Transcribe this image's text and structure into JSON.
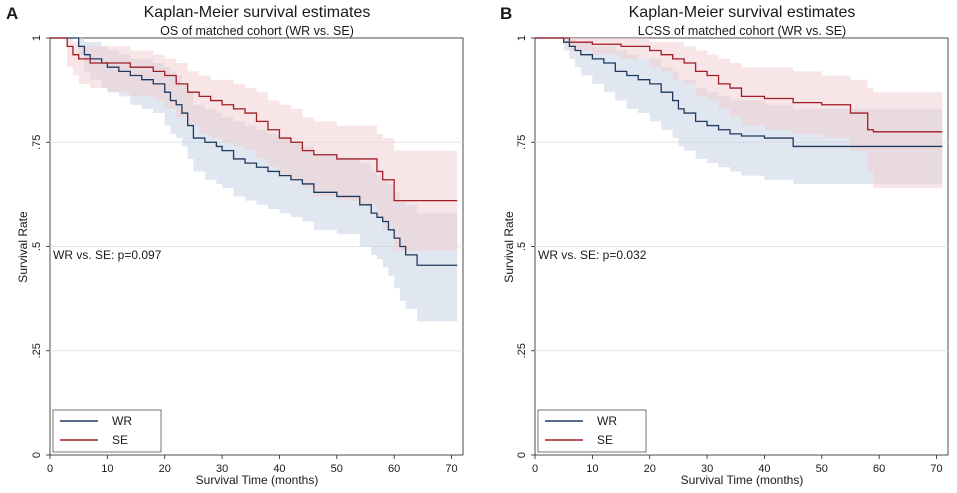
{
  "colors": {
    "wr": "#1f3a60",
    "se": "#a01e24",
    "wr_band": "#c9d3e3",
    "se_band": "#f1cfd3",
    "grid": "#e3e3e3",
    "axis": "#222222"
  },
  "chart_data": [
    {
      "type": "line",
      "panel_label": "A",
      "title": "Kaplan-Meier survival estimates",
      "subtitle": "OS of matched cohort (WR vs. SE)",
      "xlabel": "Survival Time (months)",
      "ylabel": "Survival Rate",
      "xlim": [
        0,
        72
      ],
      "ylim": [
        0,
        1
      ],
      "xticks": [
        0,
        10,
        20,
        30,
        40,
        50,
        60,
        70
      ],
      "yticks": [
        0,
        0.25,
        0.5,
        0.75,
        1
      ],
      "ytick_labels": [
        "0",
        ".25",
        ".5",
        ".75",
        "1"
      ],
      "grid": true,
      "annotation": "WR vs. SE: p=0.097",
      "legend": {
        "position": "bottom-left",
        "entries": [
          "WR",
          "SE"
        ]
      },
      "series": [
        {
          "name": "WR",
          "x": [
            0,
            3,
            5,
            6,
            7,
            9,
            10,
            12,
            14,
            16,
            18,
            20,
            21,
            22,
            23,
            24,
            25,
            27,
            29,
            30,
            32,
            34,
            36,
            38,
            40,
            42,
            44,
            46,
            50,
            54,
            56,
            57,
            58,
            59,
            60,
            61,
            62,
            64,
            71
          ],
          "y": [
            1,
            1,
            0.98,
            0.96,
            0.95,
            0.94,
            0.93,
            0.92,
            0.91,
            0.9,
            0.89,
            0.87,
            0.85,
            0.84,
            0.82,
            0.79,
            0.76,
            0.75,
            0.74,
            0.73,
            0.71,
            0.7,
            0.69,
            0.68,
            0.67,
            0.66,
            0.65,
            0.63,
            0.62,
            0.6,
            0.58,
            0.57,
            0.56,
            0.54,
            0.52,
            0.5,
            0.48,
            0.455,
            0.455
          ],
          "ci_lower": [
            1,
            1,
            0.96,
            0.92,
            0.9,
            0.88,
            0.87,
            0.86,
            0.84,
            0.83,
            0.82,
            0.79,
            0.77,
            0.76,
            0.74,
            0.71,
            0.68,
            0.66,
            0.65,
            0.64,
            0.62,
            0.61,
            0.6,
            0.59,
            0.58,
            0.57,
            0.56,
            0.54,
            0.53,
            0.5,
            0.48,
            0.47,
            0.45,
            0.43,
            0.4,
            0.37,
            0.35,
            0.32,
            0.32
          ],
          "ci_upper": [
            1,
            1,
            1,
            0.99,
            0.99,
            0.98,
            0.97,
            0.96,
            0.95,
            0.95,
            0.94,
            0.93,
            0.92,
            0.91,
            0.89,
            0.87,
            0.84,
            0.83,
            0.82,
            0.81,
            0.8,
            0.79,
            0.78,
            0.77,
            0.76,
            0.75,
            0.74,
            0.72,
            0.71,
            0.7,
            0.68,
            0.67,
            0.66,
            0.65,
            0.63,
            0.61,
            0.6,
            0.58,
            0.58
          ]
        },
        {
          "name": "SE",
          "x": [
            0,
            3,
            4,
            5,
            7,
            10,
            14,
            18,
            20,
            22,
            24,
            26,
            28,
            30,
            32,
            34,
            36,
            38,
            40,
            42,
            44,
            46,
            50,
            54,
            57,
            58,
            60,
            71
          ],
          "y": [
            1,
            0.98,
            0.96,
            0.95,
            0.94,
            0.94,
            0.93,
            0.92,
            0.91,
            0.89,
            0.87,
            0.86,
            0.85,
            0.84,
            0.83,
            0.82,
            0.8,
            0.78,
            0.76,
            0.75,
            0.73,
            0.72,
            0.71,
            0.71,
            0.68,
            0.66,
            0.61,
            0.61
          ],
          "ci_lower": [
            1,
            0.93,
            0.91,
            0.89,
            0.88,
            0.87,
            0.86,
            0.85,
            0.83,
            0.81,
            0.79,
            0.77,
            0.76,
            0.75,
            0.74,
            0.73,
            0.71,
            0.69,
            0.67,
            0.66,
            0.64,
            0.62,
            0.61,
            0.6,
            0.57,
            0.54,
            0.49,
            0.49
          ],
          "ci_upper": [
            1,
            1,
            0.99,
            0.98,
            0.98,
            0.98,
            0.97,
            0.96,
            0.95,
            0.94,
            0.92,
            0.91,
            0.9,
            0.9,
            0.89,
            0.88,
            0.87,
            0.85,
            0.84,
            0.83,
            0.81,
            0.8,
            0.79,
            0.79,
            0.77,
            0.76,
            0.73,
            0.73
          ]
        }
      ]
    },
    {
      "type": "line",
      "panel_label": "B",
      "title": "Kaplan-Meier survival estimates",
      "subtitle": "LCSS of matched cohort (WR vs. SE)",
      "xlabel": "Survival Time (months)",
      "ylabel": "Survival Rate",
      "xlim": [
        0,
        72
      ],
      "ylim": [
        0,
        1
      ],
      "xticks": [
        0,
        10,
        20,
        30,
        40,
        50,
        60,
        70
      ],
      "yticks": [
        0,
        0.25,
        0.5,
        0.75,
        1
      ],
      "ytick_labels": [
        "0",
        ".25",
        ".5",
        ".75",
        "1"
      ],
      "grid": true,
      "annotation": "WR vs. SE: p=0.032",
      "legend": {
        "position": "bottom-left",
        "entries": [
          "WR",
          "SE"
        ]
      },
      "series": [
        {
          "name": "WR",
          "x": [
            0,
            5,
            6,
            7,
            8,
            10,
            12,
            14,
            16,
            18,
            20,
            22,
            24,
            25,
            26,
            28,
            30,
            32,
            34,
            36,
            40,
            45,
            71
          ],
          "y": [
            1,
            0.99,
            0.98,
            0.97,
            0.96,
            0.95,
            0.94,
            0.92,
            0.91,
            0.9,
            0.89,
            0.87,
            0.85,
            0.83,
            0.82,
            0.8,
            0.79,
            0.78,
            0.77,
            0.765,
            0.76,
            0.74,
            0.74
          ],
          "ci_lower": [
            1,
            0.97,
            0.95,
            0.93,
            0.91,
            0.89,
            0.87,
            0.85,
            0.83,
            0.82,
            0.8,
            0.78,
            0.76,
            0.74,
            0.73,
            0.71,
            0.7,
            0.69,
            0.68,
            0.67,
            0.66,
            0.65,
            0.65
          ],
          "ci_upper": [
            1,
            1,
            1,
            0.99,
            0.99,
            0.98,
            0.98,
            0.97,
            0.96,
            0.95,
            0.95,
            0.93,
            0.92,
            0.9,
            0.9,
            0.88,
            0.87,
            0.86,
            0.85,
            0.85,
            0.84,
            0.83,
            0.83
          ]
        },
        {
          "name": "SE",
          "x": [
            0,
            6,
            10,
            15,
            20,
            22,
            24,
            26,
            28,
            30,
            32,
            34,
            36,
            40,
            45,
            50,
            55,
            58,
            59,
            71
          ],
          "y": [
            1,
            0.99,
            0.985,
            0.98,
            0.97,
            0.96,
            0.95,
            0.94,
            0.92,
            0.91,
            0.89,
            0.88,
            0.86,
            0.855,
            0.845,
            0.84,
            0.82,
            0.78,
            0.775,
            0.775
          ],
          "ci_lower": [
            1,
            0.97,
            0.96,
            0.95,
            0.93,
            0.92,
            0.9,
            0.89,
            0.86,
            0.85,
            0.83,
            0.81,
            0.79,
            0.78,
            0.77,
            0.76,
            0.73,
            0.68,
            0.64,
            0.64
          ],
          "ci_upper": [
            1,
            1,
            1,
            1,
            0.99,
            0.99,
            0.99,
            0.98,
            0.97,
            0.96,
            0.95,
            0.94,
            0.93,
            0.93,
            0.92,
            0.91,
            0.9,
            0.88,
            0.87,
            0.87
          ]
        }
      ]
    }
  ]
}
